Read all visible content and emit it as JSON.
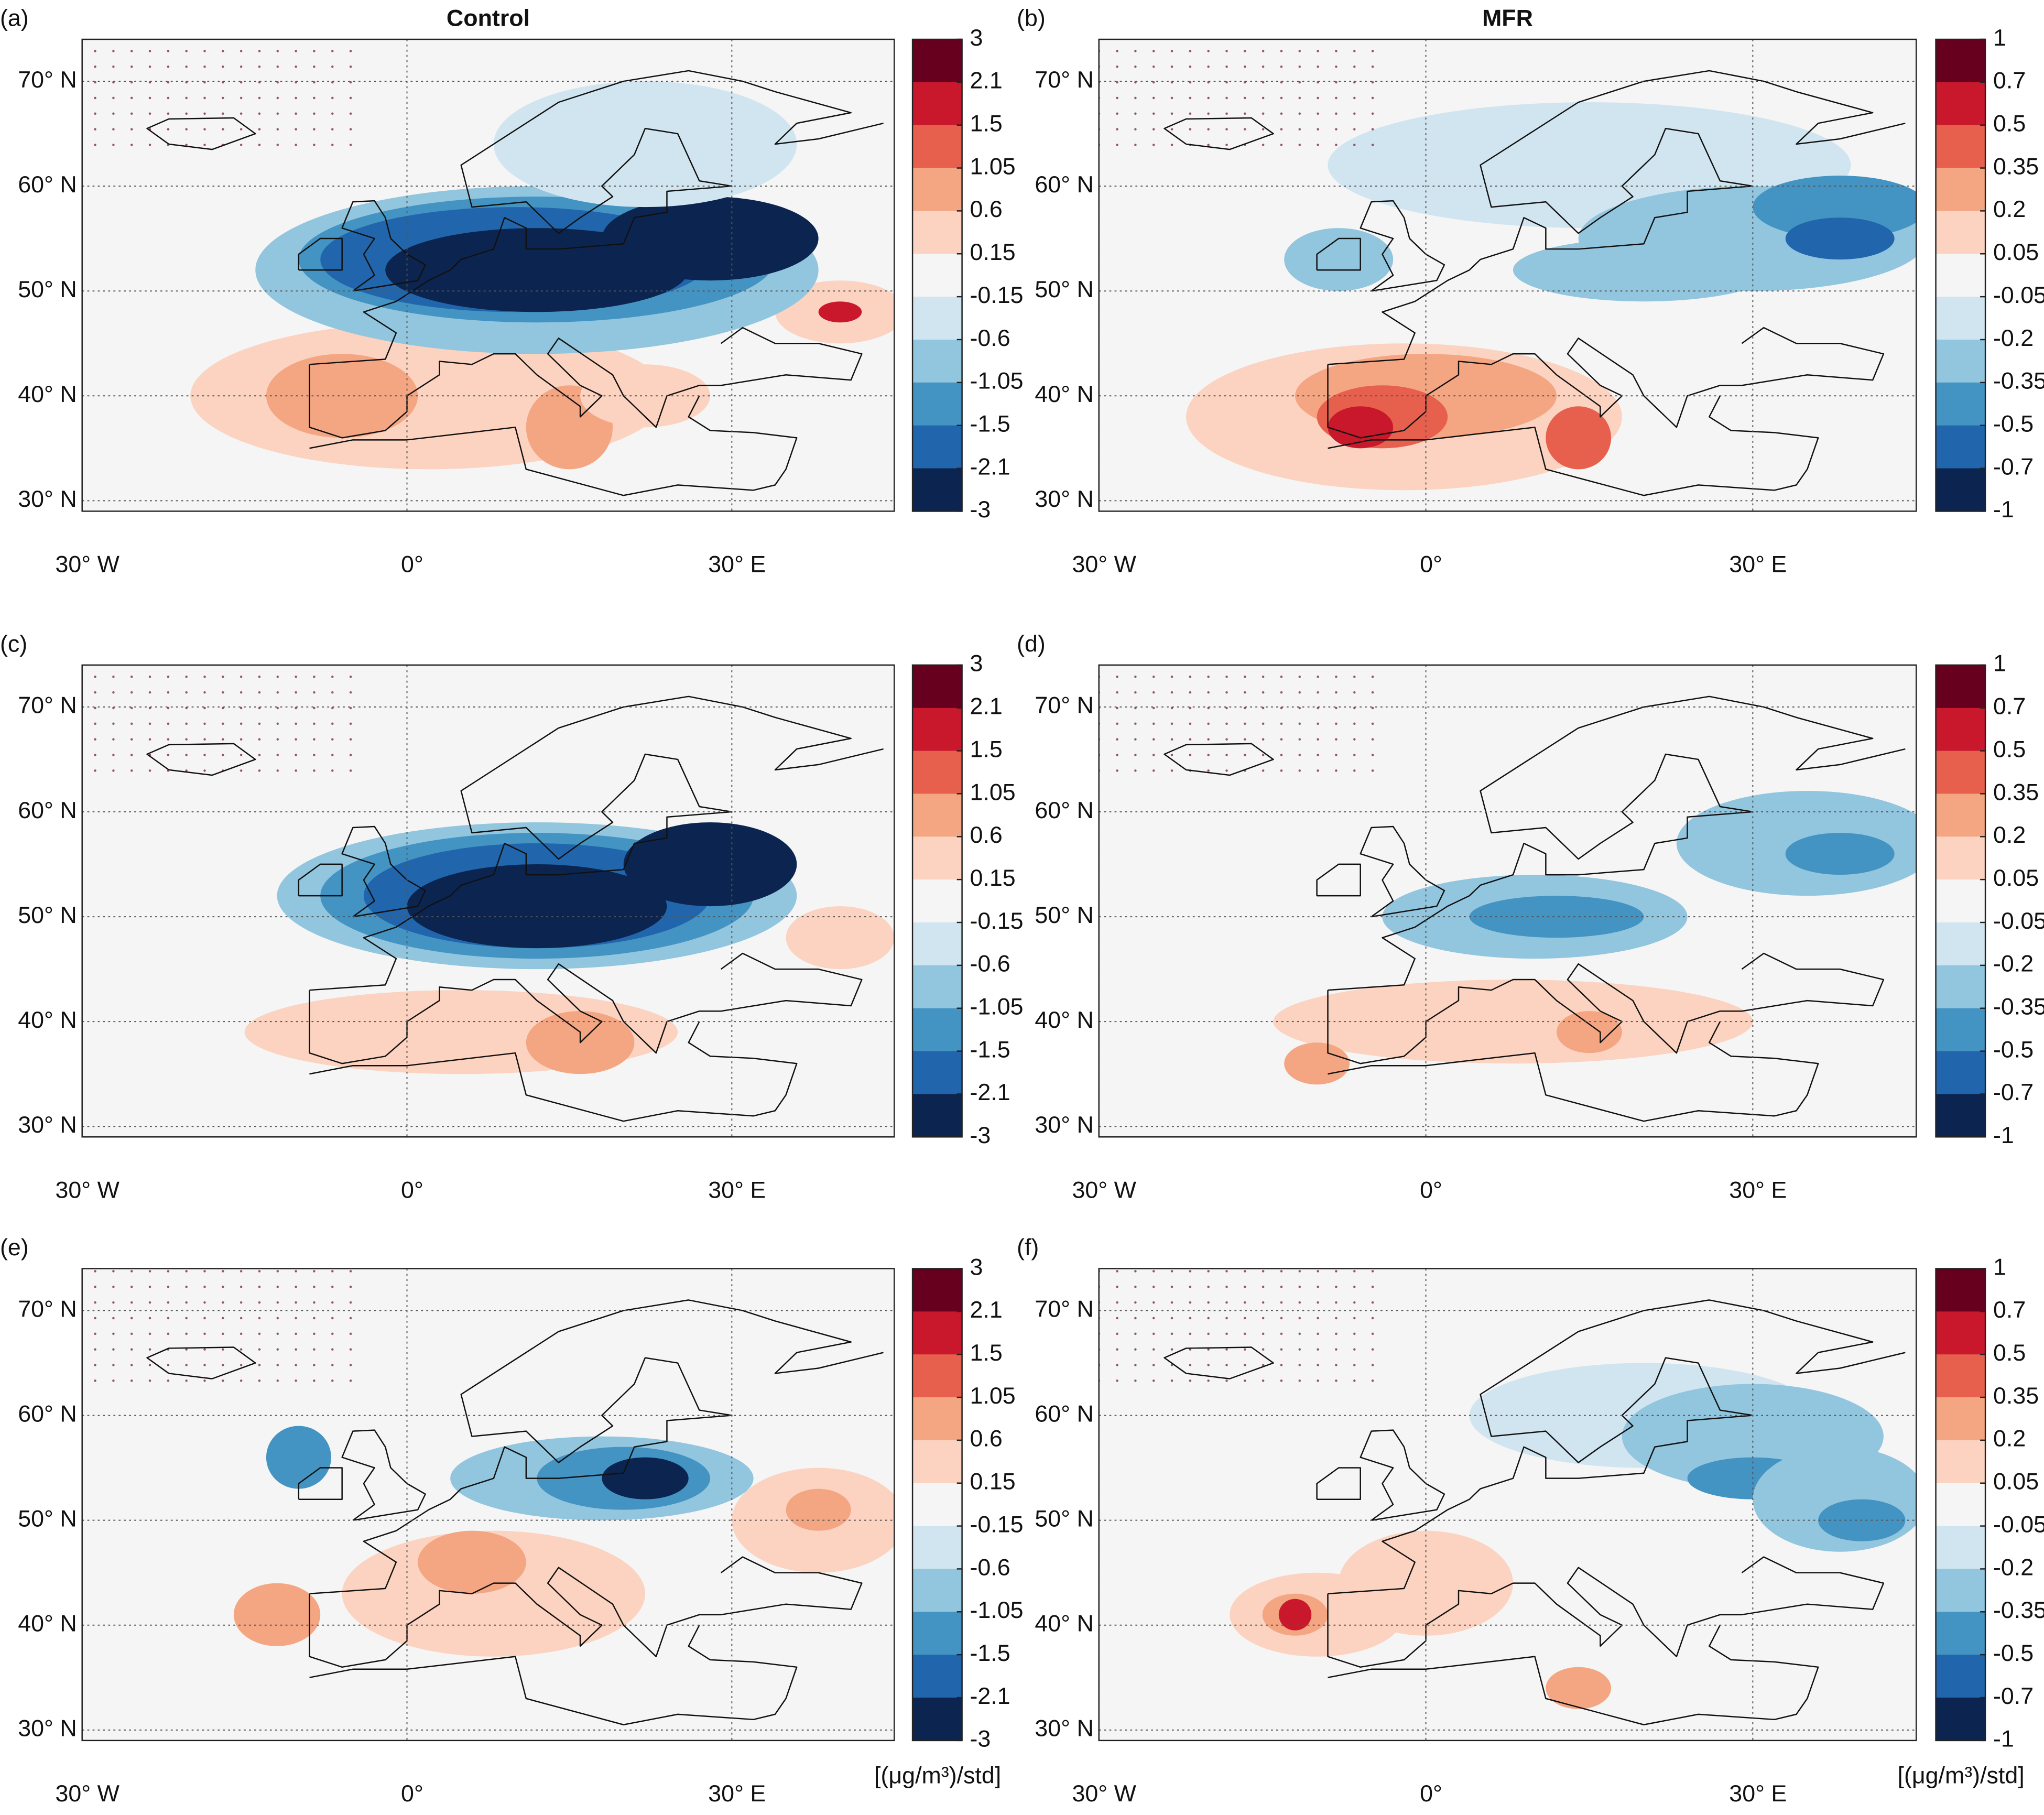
{
  "chart_data": [
    {
      "type": "contour-map",
      "label": "(a)",
      "title": "Control",
      "xlim": [
        -30,
        45
      ],
      "ylim": [
        29,
        74
      ],
      "xticks": [
        {
          "value": -30,
          "label": "30° W"
        },
        {
          "value": 0,
          "label": "0°"
        },
        {
          "value": 30,
          "label": "30° E"
        }
      ],
      "yticks": [
        {
          "value": 30,
          "label": "30° N"
        },
        {
          "value": 40,
          "label": "40° N"
        },
        {
          "value": 50,
          "label": "50° N"
        },
        {
          "value": 60,
          "label": "60° N"
        },
        {
          "value": 70,
          "label": "70° N"
        }
      ],
      "levels": [
        3,
        2.1,
        1.5,
        1.05,
        0.6,
        0.15,
        -0.15,
        -0.6,
        -1.05,
        -1.5,
        -2.1,
        -3
      ],
      "colors": [
        "#67001f",
        "#c9182c",
        "#e6604d",
        "#f4a582",
        "#fbd3c0",
        "#f5f5f5",
        "#d1e5f0",
        "#92c5de",
        "#4393c3",
        "#2166ac",
        "#0b2550"
      ]
    },
    {
      "type": "contour-map",
      "label": "(b)",
      "title": "MFR",
      "xlim": [
        -30,
        45
      ],
      "ylim": [
        29,
        74
      ],
      "xticks": [
        {
          "value": -30,
          "label": "30° W"
        },
        {
          "value": 0,
          "label": "0°"
        },
        {
          "value": 30,
          "label": "30° E"
        }
      ],
      "yticks": [
        {
          "value": 30,
          "label": "30° N"
        },
        {
          "value": 40,
          "label": "40° N"
        },
        {
          "value": 50,
          "label": "50° N"
        },
        {
          "value": 60,
          "label": "60° N"
        },
        {
          "value": 70,
          "label": "70° N"
        }
      ],
      "levels": [
        1,
        0.7,
        0.5,
        0.35,
        0.2,
        0.05,
        -0.05,
        -0.2,
        -0.35,
        -0.5,
        -0.7,
        -1
      ],
      "colors": [
        "#67001f",
        "#c9182c",
        "#e6604d",
        "#f4a582",
        "#fbd3c0",
        "#f5f5f5",
        "#d1e5f0",
        "#92c5de",
        "#4393c3",
        "#2166ac",
        "#0b2550"
      ]
    },
    {
      "type": "contour-map",
      "label": "(c)",
      "xlim": [
        -30,
        45
      ],
      "ylim": [
        29,
        74
      ],
      "xticks": [
        {
          "value": -30,
          "label": "30° W"
        },
        {
          "value": 0,
          "label": "0°"
        },
        {
          "value": 30,
          "label": "30° E"
        }
      ],
      "yticks": [
        {
          "value": 30,
          "label": "30° N"
        },
        {
          "value": 40,
          "label": "40° N"
        },
        {
          "value": 50,
          "label": "50° N"
        },
        {
          "value": 60,
          "label": "60° N"
        },
        {
          "value": 70,
          "label": "70° N"
        }
      ],
      "levels": [
        3,
        2.1,
        1.5,
        1.05,
        0.6,
        0.15,
        -0.15,
        -0.6,
        -1.05,
        -1.5,
        -2.1,
        -3
      ],
      "colors": [
        "#67001f",
        "#c9182c",
        "#e6604d",
        "#f4a582",
        "#fbd3c0",
        "#f5f5f5",
        "#d1e5f0",
        "#92c5de",
        "#4393c3",
        "#2166ac",
        "#0b2550"
      ]
    },
    {
      "type": "contour-map",
      "label": "(d)",
      "xlim": [
        -30,
        45
      ],
      "ylim": [
        29,
        74
      ],
      "xticks": [
        {
          "value": -30,
          "label": "30° W"
        },
        {
          "value": 0,
          "label": "0°"
        },
        {
          "value": 30,
          "label": "30° E"
        }
      ],
      "yticks": [
        {
          "value": 30,
          "label": "30° N"
        },
        {
          "value": 40,
          "label": "40° N"
        },
        {
          "value": 50,
          "label": "50° N"
        },
        {
          "value": 60,
          "label": "60° N"
        },
        {
          "value": 70,
          "label": "70° N"
        }
      ],
      "levels": [
        1,
        0.7,
        0.5,
        0.35,
        0.2,
        0.05,
        -0.05,
        -0.2,
        -0.35,
        -0.5,
        -0.7,
        -1
      ],
      "colors": [
        "#67001f",
        "#c9182c",
        "#e6604d",
        "#f4a582",
        "#fbd3c0",
        "#f5f5f5",
        "#d1e5f0",
        "#92c5de",
        "#4393c3",
        "#2166ac",
        "#0b2550"
      ]
    },
    {
      "type": "contour-map",
      "label": "(e)",
      "xlim": [
        -30,
        45
      ],
      "ylim": [
        29,
        74
      ],
      "xticks": [
        {
          "value": -30,
          "label": "30° W"
        },
        {
          "value": 0,
          "label": "0°"
        },
        {
          "value": 30,
          "label": "30° E"
        }
      ],
      "yticks": [
        {
          "value": 30,
          "label": "30° N"
        },
        {
          "value": 40,
          "label": "40° N"
        },
        {
          "value": 50,
          "label": "50° N"
        },
        {
          "value": 60,
          "label": "60° N"
        },
        {
          "value": 70,
          "label": "70° N"
        }
      ],
      "levels": [
        3,
        2.1,
        1.5,
        1.05,
        0.6,
        0.15,
        -0.15,
        -0.6,
        -1.05,
        -1.5,
        -2.1,
        -3
      ],
      "colors": [
        "#67001f",
        "#c9182c",
        "#e6604d",
        "#f4a582",
        "#fbd3c0",
        "#f5f5f5",
        "#d1e5f0",
        "#92c5de",
        "#4393c3",
        "#2166ac",
        "#0b2550"
      ],
      "colorbar_label": "[(μg/m³)/std]"
    },
    {
      "type": "contour-map",
      "label": "(f)",
      "xlim": [
        -30,
        45
      ],
      "ylim": [
        29,
        74
      ],
      "xticks": [
        {
          "value": -30,
          "label": "30° W"
        },
        {
          "value": 0,
          "label": "0°"
        },
        {
          "value": 30,
          "label": "30° E"
        }
      ],
      "yticks": [
        {
          "value": 30,
          "label": "30° N"
        },
        {
          "value": 40,
          "label": "40° N"
        },
        {
          "value": 50,
          "label": "50° N"
        },
        {
          "value": 60,
          "label": "60° N"
        },
        {
          "value": 70,
          "label": "70° N"
        }
      ],
      "levels": [
        1,
        0.7,
        0.5,
        0.35,
        0.2,
        0.05,
        -0.05,
        -0.2,
        -0.35,
        -0.5,
        -0.7,
        -1
      ],
      "colors": [
        "#67001f",
        "#c9182c",
        "#e6604d",
        "#f4a582",
        "#fbd3c0",
        "#f5f5f5",
        "#d1e5f0",
        "#92c5de",
        "#4393c3",
        "#2166ac",
        "#0b2550"
      ],
      "colorbar_label": "[(μg/m³)/std]"
    }
  ]
}
